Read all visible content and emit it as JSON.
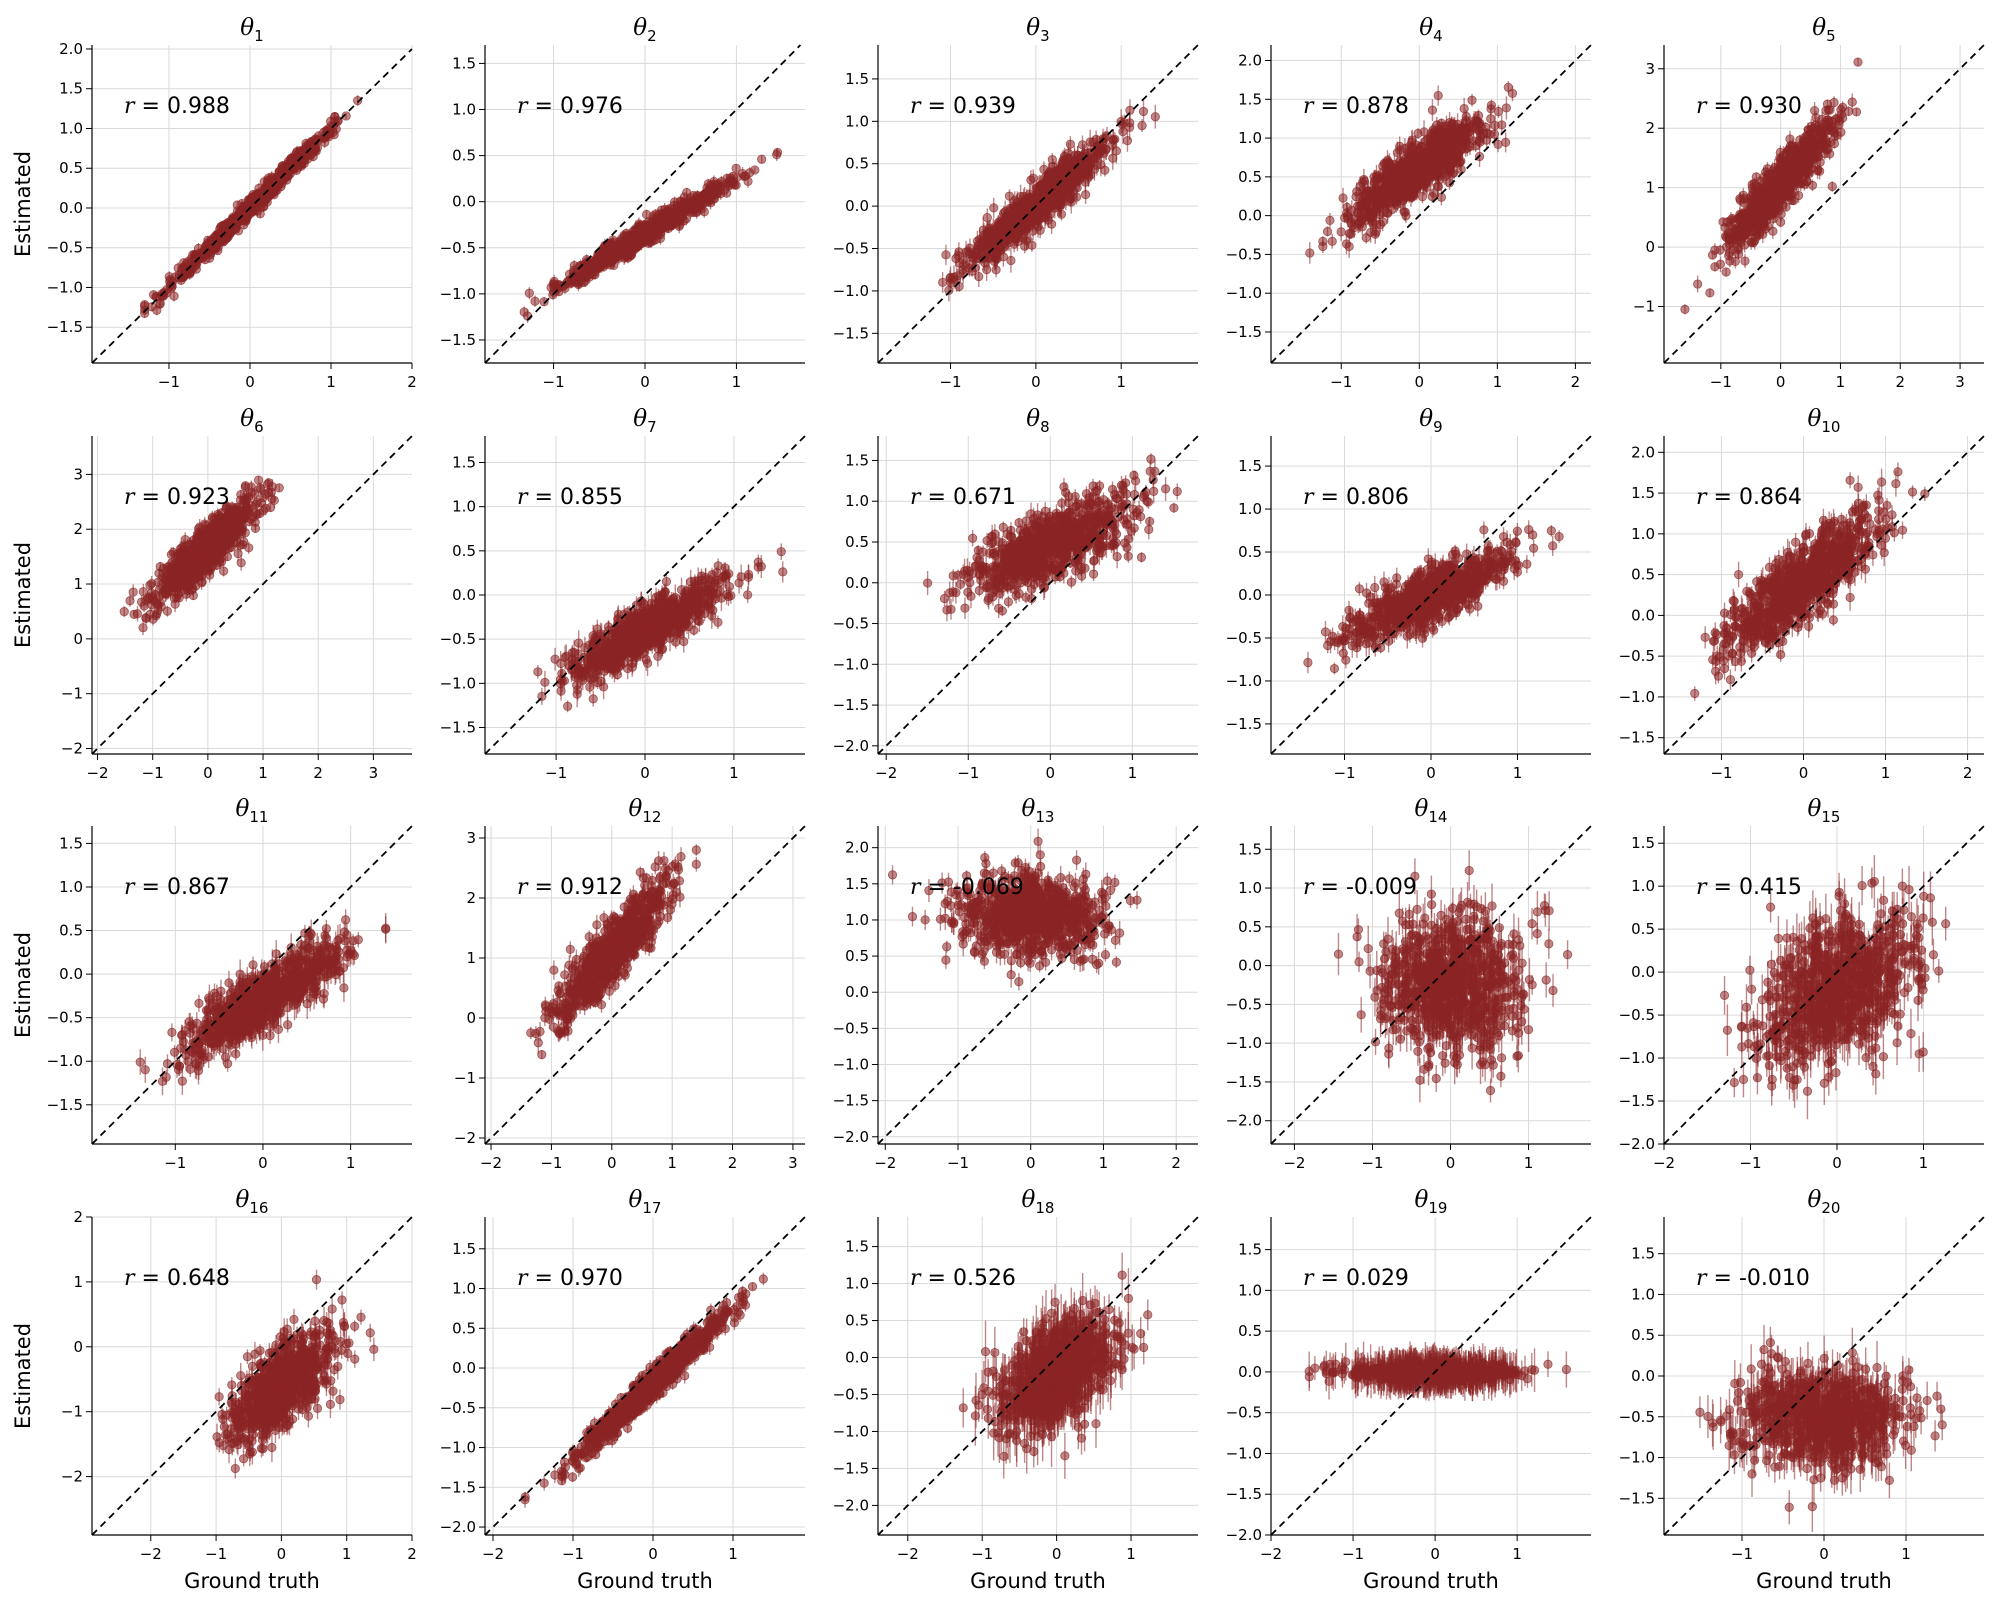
{
  "chart_data": {
    "type": "scatter",
    "layout": {
      "rows": 4,
      "cols": 5
    },
    "xlabel": "Ground truth",
    "ylabel": "Estimated",
    "point_color": "#8b2525",
    "reference_line": "identity (y = x), black dashed",
    "grid": true,
    "panels": [
      {
        "title": "θ",
        "subscript": "1",
        "r": "0.988",
        "xticks": [
          -1,
          0,
          1,
          2
        ],
        "yticks": [
          -1.5,
          -1.0,
          -0.5,
          0.0,
          0.5,
          1.0,
          1.5,
          2.0
        ],
        "xlim": [
          -1.95,
          2.0
        ],
        "ylim": [
          -1.95,
          2.05
        ],
        "slope": 1.0,
        "intercept": 0.0,
        "xsd": 0.48,
        "ysd_noise": 0.06,
        "err": 0.05,
        "xclip": [
          -1.3,
          1.7
        ]
      },
      {
        "title": "θ",
        "subscript": "2",
        "r": "0.976",
        "xticks": [
          -1,
          0,
          1
        ],
        "yticks": [
          -1.5,
          -1.0,
          -0.5,
          0.0,
          0.5,
          1.0,
          1.5
        ],
        "xlim": [
          -1.75,
          1.75
        ],
        "ylim": [
          -1.75,
          1.7
        ],
        "slope": 0.6,
        "intercept": -0.35,
        "xsd": 0.45,
        "ysd_noise": 0.06,
        "err": 0.05,
        "xclip": [
          -1.45,
          1.45
        ]
      },
      {
        "title": "θ",
        "subscript": "3",
        "r": "0.939",
        "xticks": [
          -1,
          0,
          1
        ],
        "yticks": [
          -1.5,
          -1.0,
          -0.5,
          0.0,
          0.5,
          1.0,
          1.5
        ],
        "xlim": [
          -1.85,
          1.9
        ],
        "ylim": [
          -1.85,
          1.9
        ],
        "slope": 0.85,
        "intercept": 0.0,
        "xsd": 0.42,
        "ysd_noise": 0.13,
        "err": 0.1,
        "xclip": [
          -1.6,
          1.4
        ]
      },
      {
        "title": "θ",
        "subscript": "4",
        "r": "0.878",
        "xticks": [
          -1,
          0,
          1,
          2
        ],
        "yticks": [
          -1.5,
          -1.0,
          -0.5,
          0.0,
          0.5,
          1.0,
          1.5,
          2.0
        ],
        "xlim": [
          -1.9,
          2.2
        ],
        "ylim": [
          -1.9,
          2.2
        ],
        "slope": 0.7,
        "intercept": 0.6,
        "xsd": 0.45,
        "ysd_noise": 0.18,
        "err": 0.1,
        "xclip": [
          -1.6,
          1.9
        ]
      },
      {
        "title": "θ",
        "subscript": "5",
        "r": "0.930",
        "xticks": [
          -1,
          0,
          1,
          2,
          3
        ],
        "yticks": [
          -1,
          0,
          1,
          2,
          3
        ],
        "xlim": [
          -1.95,
          3.4
        ],
        "ylim": [
          -1.95,
          3.4
        ],
        "slope": 1.1,
        "intercept": 1.05,
        "xsd": 0.45,
        "ysd_noise": 0.22,
        "err": 0.1,
        "xclip": [
          -1.6,
          1.8
        ]
      },
      {
        "title": "θ",
        "subscript": "6",
        "r": "0.923",
        "xticks": [
          -2,
          -1,
          0,
          1,
          2,
          3
        ],
        "yticks": [
          -2,
          -1,
          0,
          1,
          2,
          3
        ],
        "xlim": [
          -2.1,
          3.7
        ],
        "ylim": [
          -2.1,
          3.7
        ],
        "slope": 0.9,
        "intercept": 1.65,
        "xsd": 0.48,
        "ysd_noise": 0.22,
        "err": 0.1,
        "xclip": [
          -1.7,
          1.8
        ]
      },
      {
        "title": "θ",
        "subscript": "7",
        "r": "0.855",
        "xticks": [
          -1,
          0,
          1
        ],
        "yticks": [
          -1.5,
          -1.0,
          -0.5,
          0.0,
          0.5,
          1.0,
          1.5
        ],
        "xlim": [
          -1.8,
          1.8
        ],
        "ylim": [
          -1.8,
          1.8
        ],
        "slope": 0.55,
        "intercept": -0.4,
        "xsd": 0.45,
        "ysd_noise": 0.14,
        "err": 0.1,
        "xclip": [
          -1.55,
          1.55
        ]
      },
      {
        "title": "θ",
        "subscript": "8",
        "r": "0.671",
        "xticks": [
          -2,
          -1,
          0,
          1
        ],
        "yticks": [
          -2.0,
          -1.5,
          -1.0,
          -0.5,
          0.0,
          0.5,
          1.0,
          1.5
        ],
        "xlim": [
          -2.1,
          1.8
        ],
        "ylim": [
          -2.1,
          1.8
        ],
        "slope": 0.4,
        "intercept": 0.45,
        "xsd": 0.5,
        "ysd_noise": 0.22,
        "err": 0.1,
        "xclip": [
          -1.8,
          1.6
        ]
      },
      {
        "title": "θ",
        "subscript": "9",
        "r": "0.806",
        "xticks": [
          -1,
          0,
          1
        ],
        "yticks": [
          -1.5,
          -1.0,
          -0.5,
          0.0,
          0.5,
          1.0,
          1.5
        ],
        "xlim": [
          -1.85,
          1.85
        ],
        "ylim": [
          -1.85,
          1.85
        ],
        "slope": 0.45,
        "intercept": 0.0,
        "xsd": 0.45,
        "ysd_noise": 0.15,
        "err": 0.1,
        "xclip": [
          -1.6,
          1.6
        ]
      },
      {
        "title": "θ",
        "subscript": "10",
        "r": "0.864",
        "xticks": [
          -1,
          0,
          1,
          2
        ],
        "yticks": [
          -1.5,
          -1.0,
          -0.5,
          0.0,
          0.5,
          1.0,
          1.5,
          2.0
        ],
        "xlim": [
          -1.7,
          2.2
        ],
        "ylim": [
          -1.7,
          2.2
        ],
        "slope": 0.75,
        "intercept": 0.4,
        "xsd": 0.48,
        "ysd_noise": 0.22,
        "err": 0.12,
        "xclip": [
          -1.4,
          1.9
        ]
      },
      {
        "title": "θ",
        "subscript": "11",
        "r": "0.867",
        "xticks": [
          -1,
          0,
          1
        ],
        "yticks": [
          -1.5,
          -1.0,
          -0.5,
          0.0,
          0.5,
          1.0,
          1.5
        ],
        "xlim": [
          -1.95,
          1.7
        ],
        "ylim": [
          -1.95,
          1.7
        ],
        "slope": 0.6,
        "intercept": -0.3,
        "xsd": 0.45,
        "ysd_noise": 0.17,
        "err": 0.12,
        "xclip": [
          -1.4,
          1.4
        ]
      },
      {
        "title": "θ",
        "subscript": "12",
        "r": "0.912",
        "xticks": [
          -2,
          -1,
          0,
          1,
          2,
          3
        ],
        "yticks": [
          -2,
          -1,
          0,
          1,
          2,
          3
        ],
        "xlim": [
          -2.1,
          3.2
        ],
        "ylim": [
          -2.1,
          3.2
        ],
        "slope": 1.1,
        "intercept": 1.1,
        "xsd": 0.45,
        "ysd_noise": 0.25,
        "err": 0.12,
        "xclip": [
          -1.7,
          1.4
        ]
      },
      {
        "title": "θ",
        "subscript": "13",
        "r": "-0.069",
        "xticks": [
          -2,
          -1,
          0,
          1,
          2
        ],
        "yticks": [
          -2.0,
          -1.5,
          -1.0,
          -0.5,
          0.0,
          0.5,
          1.0,
          1.5,
          2.0
        ],
        "xlim": [
          -2.1,
          2.3
        ],
        "ylim": [
          -2.1,
          2.3
        ],
        "slope": -0.03,
        "intercept": 1.05,
        "xsd": 0.5,
        "ysd_noise": 0.28,
        "err": 0.12,
        "xclip": [
          -1.9,
          1.8
        ]
      },
      {
        "title": "θ",
        "subscript": "14",
        "r": "-0.009",
        "xticks": [
          -2,
          -1,
          0,
          1
        ],
        "yticks": [
          -2.0,
          -1.5,
          -1.0,
          -0.5,
          0.0,
          0.5,
          1.0,
          1.5
        ],
        "xlim": [
          -2.3,
          1.8
        ],
        "ylim": [
          -2.3,
          1.8
        ],
        "slope": 0.0,
        "intercept": -0.2,
        "xsd": 0.45,
        "ysd_noise": 0.45,
        "err": 0.2,
        "xclip": [
          -1.6,
          1.5
        ]
      },
      {
        "title": "θ",
        "subscript": "15",
        "r": "0.415",
        "xticks": [
          -2,
          -1,
          0,
          1
        ],
        "yticks": [
          -2.0,
          -1.5,
          -1.0,
          -0.5,
          0.0,
          0.5,
          1.0,
          1.5
        ],
        "xlim": [
          -2.0,
          1.7
        ],
        "ylim": [
          -2.0,
          1.7
        ],
        "slope": 0.4,
        "intercept": -0.2,
        "xsd": 0.45,
        "ysd_noise": 0.4,
        "err": 0.22,
        "xclip": [
          -1.7,
          1.5
        ]
      },
      {
        "title": "θ",
        "subscript": "16",
        "r": "0.648",
        "xticks": [
          -2,
          -1,
          0,
          1,
          2
        ],
        "yticks": [
          -2,
          -1,
          0,
          1,
          2
        ],
        "xlim": [
          -2.9,
          2.0
        ],
        "ylim": [
          -2.9,
          2.0
        ],
        "slope": 0.7,
        "intercept": -0.6,
        "xsd": 0.42,
        "ysd_noise": 0.3,
        "err": 0.15,
        "xclip": [
          -1.9,
          1.6
        ]
      },
      {
        "title": "θ",
        "subscript": "17",
        "r": "0.970",
        "xticks": [
          -2,
          -1,
          0,
          1
        ],
        "yticks": [
          -2.0,
          -1.5,
          -1.0,
          -0.5,
          0.0,
          0.5,
          1.0,
          1.5
        ],
        "xlim": [
          -2.1,
          1.9
        ],
        "ylim": [
          -2.1,
          1.9
        ],
        "slope": 0.95,
        "intercept": -0.2,
        "xsd": 0.5,
        "ysd_noise": 0.09,
        "err": 0.07,
        "xclip": [
          -1.6,
          1.6
        ]
      },
      {
        "title": "θ",
        "subscript": "18",
        "r": "0.526",
        "xticks": [
          -2,
          -1,
          0,
          1
        ],
        "yticks": [
          -2.0,
          -1.5,
          -1.0,
          -0.5,
          0.0,
          0.5,
          1.0,
          1.5
        ],
        "xlim": [
          -2.4,
          1.9
        ],
        "ylim": [
          -2.4,
          1.9
        ],
        "slope": 0.5,
        "intercept": -0.2,
        "xsd": 0.4,
        "ysd_noise": 0.32,
        "err": 0.28,
        "xclip": [
          -2.1,
          1.6
        ]
      },
      {
        "title": "θ",
        "subscript": "19",
        "r": "0.029",
        "xticks": [
          -2,
          -1,
          0,
          1
        ],
        "yticks": [
          -2.0,
          -1.5,
          -1.0,
          -0.5,
          0.0,
          0.5,
          1.0,
          1.5
        ],
        "xlim": [
          -2.0,
          1.9
        ],
        "ylim": [
          -2.0,
          1.9
        ],
        "slope": 0.0,
        "intercept": 0.0,
        "xsd": 0.5,
        "ysd_noise": 0.05,
        "err": 0.18,
        "xclip": [
          -1.7,
          1.6
        ]
      },
      {
        "title": "θ",
        "subscript": "20",
        "r": "-0.010",
        "xticks": [
          -1,
          0,
          1
        ],
        "yticks": [
          -1.5,
          -1.0,
          -0.5,
          0.0,
          0.5,
          1.0,
          1.5
        ],
        "xlim": [
          -1.95,
          1.95
        ],
        "ylim": [
          -1.95,
          1.95
        ],
        "slope": 0.0,
        "intercept": -0.5,
        "xsd": 0.5,
        "ysd_noise": 0.3,
        "err": 0.22,
        "xclip": [
          -1.7,
          1.7
        ]
      }
    ]
  }
}
